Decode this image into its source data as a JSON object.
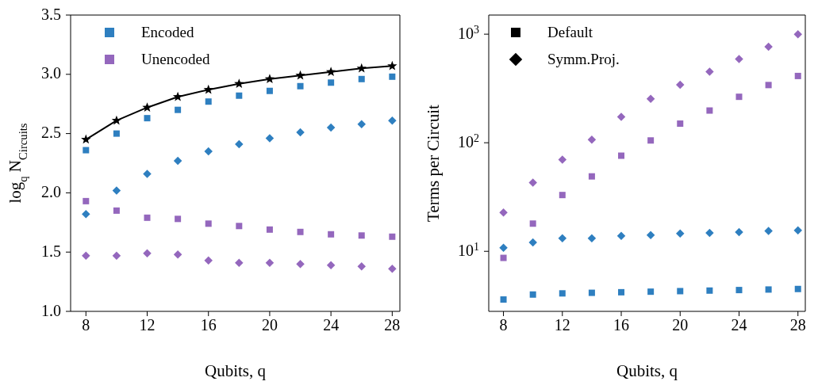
{
  "chart_data": [
    {
      "type": "scatter",
      "xlabel": "Qubits, q",
      "ylabel": "log$_{q}$ N$_{Circuits}$",
      "x": [
        8,
        10,
        12,
        14,
        16,
        18,
        20,
        22,
        24,
        26,
        28
      ],
      "xlim": [
        7,
        28.5
      ],
      "xticks": [
        8,
        12,
        16,
        20,
        24,
        28
      ],
      "ylim": [
        1.0,
        3.5
      ],
      "yticks": [
        {
          "value": 1,
          "label": "1.0"
        },
        1.5,
        {
          "value": 2,
          "label": "2.0"
        },
        2.5,
        {
          "value": 3,
          "label": "3.0"
        },
        3.5
      ],
      "grid": false,
      "legend": "top left",
      "series": [
        {
          "type": "line",
          "color": "#000000",
          "marker": "star",
          "line_style": "solid",
          "values": [
            2.45,
            2.61,
            2.72,
            2.81,
            2.87,
            2.92,
            2.96,
            2.99,
            3.02,
            3.05,
            3.07
          ]
        },
        {
          "name": "Encoded",
          "color": "#2e7fc0",
          "marker": "square",
          "values": [
            2.36,
            2.5,
            2.63,
            2.7,
            2.77,
            2.82,
            2.86,
            2.9,
            2.93,
            2.96,
            2.98
          ]
        },
        {
          "color": "#2e7fc0",
          "marker": "diamond",
          "values": [
            1.82,
            2.02,
            2.16,
            2.27,
            2.35,
            2.41,
            2.46,
            2.51,
            2.55,
            2.58,
            2.61
          ]
        },
        {
          "name": "Unencoded",
          "color": "#9467bd",
          "marker": "square",
          "values": [
            1.93,
            1.85,
            1.79,
            1.78,
            1.74,
            1.72,
            1.69,
            1.67,
            1.65,
            1.64,
            1.63
          ]
        },
        {
          "color": "#9467bd",
          "marker": "diamond",
          "values": [
            1.47,
            1.47,
            1.49,
            1.48,
            1.43,
            1.41,
            1.41,
            1.4,
            1.39,
            1.38,
            1.36
          ]
        }
      ]
    },
    {
      "type": "scatter",
      "xlabel": "Qubits, q",
      "ylabel": "Terms per Circuit",
      "x": [
        8,
        10,
        12,
        14,
        16,
        18,
        20,
        22,
        24,
        26,
        28
      ],
      "xlim": [
        7,
        28.5
      ],
      "xticks": [
        8,
        12,
        16,
        20,
        24,
        28
      ],
      "log": "y",
      "ylim": [
        2.8,
        1500
      ],
      "yticks": [
        {
          "value": 10,
          "label": "10$^{1}$"
        },
        {
          "value": 100,
          "label": "10$^{2}$"
        },
        {
          "value": 1000,
          "label": "10$^{3}$"
        }
      ],
      "grid": false,
      "legend": "top left",
      "series": [
        {
          "name": "Default",
          "color": "#000000",
          "marker": "square",
          "values": [
            null,
            null,
            null,
            null,
            null,
            null,
            null,
            null,
            null,
            null,
            null
          ]
        },
        {
          "name": "Symm.Proj.",
          "color": "#000000",
          "marker": "diamond",
          "values": [
            null,
            null,
            null,
            null,
            null,
            null,
            null,
            null,
            null,
            null,
            null
          ]
        },
        {
          "color": "#9467bd",
          "marker": "diamond",
          "values": [
            22.8,
            43,
            70,
            107,
            173,
            254,
            342,
            452,
            590,
            767,
            1000
          ]
        },
        {
          "color": "#9467bd",
          "marker": "square",
          "values": [
            8.7,
            18,
            33,
            49,
            76,
            105,
            150,
            198,
            265,
            340,
            412
          ]
        },
        {
          "color": "#2e7fc0",
          "marker": "diamond",
          "values": [
            10.8,
            12.1,
            13.2,
            13.2,
            13.9,
            14.1,
            14.6,
            14.8,
            15.0,
            15.4,
            15.6
          ]
        },
        {
          "color": "#2e7fc0",
          "marker": "square",
          "values": [
            3.6,
            4.0,
            4.1,
            4.15,
            4.2,
            4.25,
            4.3,
            4.35,
            4.4,
            4.45,
            4.5
          ]
        }
      ]
    }
  ]
}
